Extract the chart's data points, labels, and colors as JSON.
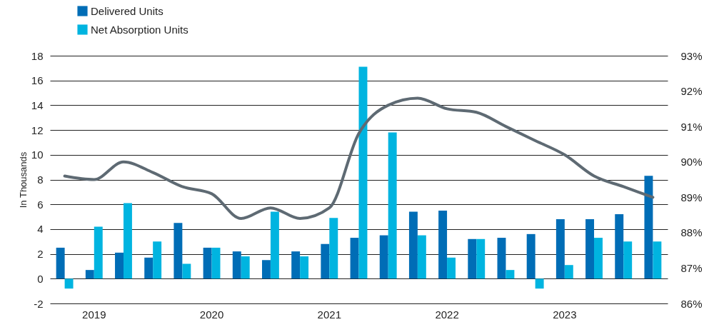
{
  "chart_data": {
    "type": "bar",
    "ylabel": "In Thousands",
    "categories": [
      null,
      "2019",
      null,
      null,
      null,
      "2020",
      null,
      null,
      null,
      "2021",
      null,
      null,
      null,
      "2022",
      null,
      null,
      null,
      "2023",
      null,
      null,
      null
    ],
    "series": [
      {
        "name": "Delivered Units",
        "color": "#006db6",
        "values": [
          2.5,
          0.7,
          2.1,
          1.7,
          4.5,
          2.5,
          2.2,
          1.5,
          2.2,
          2.8,
          3.3,
          3.5,
          5.4,
          5.5,
          3.2,
          3.3,
          3.6,
          4.8,
          4.8,
          5.2,
          8.3
        ]
      },
      {
        "name": "Net Absorption Units",
        "color": "#00b4e0",
        "values": [
          -0.8,
          4.2,
          6.1,
          3.0,
          1.2,
          2.5,
          1.8,
          5.4,
          1.8,
          4.9,
          17.1,
          11.8,
          3.5,
          1.7,
          3.2,
          0.7,
          -0.8,
          1.1,
          3.3,
          3.0,
          3.0
        ]
      },
      {
        "type": "line",
        "axis": "y2",
        "color": "#5e6a73",
        "values": [
          89.6,
          89.5,
          90.0,
          89.7,
          89.3,
          89.1,
          88.4,
          88.7,
          88.4,
          88.7,
          90.8,
          91.6,
          91.8,
          91.5,
          91.4,
          91.0,
          90.6,
          90.2,
          89.6,
          89.3,
          89.0
        ]
      }
    ],
    "ylim": [
      -2,
      18
    ],
    "yticks": [
      -2,
      0,
      2,
      4,
      6,
      8,
      10,
      12,
      14,
      16,
      18
    ],
    "y2lim": [
      86,
      93
    ],
    "y2ticks": [
      {
        "value": 86,
        "label": "86%"
      },
      {
        "value": 87,
        "label": "87%"
      },
      {
        "value": 88,
        "label": "88%"
      },
      {
        "value": 89,
        "label": "89%"
      },
      {
        "value": 90,
        "label": "90%"
      },
      {
        "value": 91,
        "label": "91%"
      },
      {
        "value": 92,
        "label": "92%"
      },
      {
        "value": 93,
        "label": "93%"
      }
    ],
    "grid": "y",
    "legend": "top left",
    "line_style": "solid"
  }
}
